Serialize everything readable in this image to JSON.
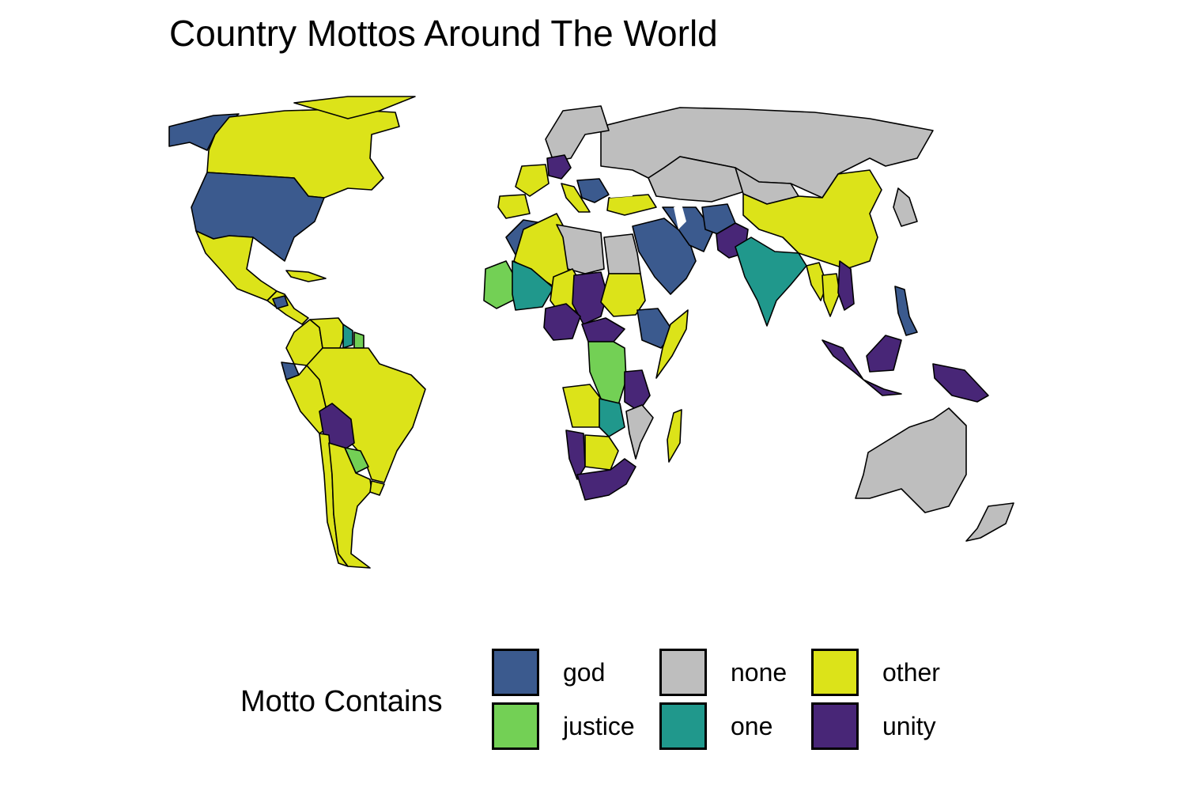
{
  "title": "Country Mottos Around The World",
  "legend": {
    "title": "Motto Contains",
    "items": [
      {
        "key": "god",
        "label": "god",
        "color": "#3B5A8E"
      },
      {
        "key": "justice",
        "label": "justice",
        "color": "#73D055"
      },
      {
        "key": "none",
        "label": "none",
        "color": "#BEBEBE"
      },
      {
        "key": "one",
        "label": "one",
        "color": "#20988C"
      },
      {
        "key": "other",
        "label": "other",
        "color": "#DCE319"
      },
      {
        "key": "unity",
        "label": "unity",
        "color": "#482677"
      }
    ]
  },
  "map_data": {
    "type": "choropleth",
    "regions": [
      {
        "name": "Alaska",
        "category": "god"
      },
      {
        "name": "Canada",
        "category": "other"
      },
      {
        "name": "Greenland",
        "category": "other"
      },
      {
        "name": "United States",
        "category": "god"
      },
      {
        "name": "Mexico",
        "category": "other"
      },
      {
        "name": "Central America",
        "category": "other"
      },
      {
        "name": "Cuba",
        "category": "other"
      },
      {
        "name": "Honduras",
        "category": "god"
      },
      {
        "name": "Colombia",
        "category": "other"
      },
      {
        "name": "Venezuela",
        "category": "other"
      },
      {
        "name": "Guyana",
        "category": "one"
      },
      {
        "name": "Suriname",
        "category": "justice"
      },
      {
        "name": "Ecuador",
        "category": "god"
      },
      {
        "name": "Peru",
        "category": "other"
      },
      {
        "name": "Brazil",
        "category": "other"
      },
      {
        "name": "Bolivia",
        "category": "unity"
      },
      {
        "name": "Paraguay",
        "category": "justice"
      },
      {
        "name": "Argentina",
        "category": "other"
      },
      {
        "name": "Chile",
        "category": "other"
      },
      {
        "name": "Uruguay",
        "category": "other"
      },
      {
        "name": "Russia",
        "category": "none"
      },
      {
        "name": "Scandinavia",
        "category": "none"
      },
      {
        "name": "Germany",
        "category": "unity"
      },
      {
        "name": "France",
        "category": "other"
      },
      {
        "name": "Spain",
        "category": "other"
      },
      {
        "name": "Italy",
        "category": "other"
      },
      {
        "name": "Balkans",
        "category": "god"
      },
      {
        "name": "Turkey",
        "category": "other"
      },
      {
        "name": "Kazakhstan",
        "category": "none"
      },
      {
        "name": "Mongolia",
        "category": "none"
      },
      {
        "name": "China",
        "category": "other"
      },
      {
        "name": "Japan",
        "category": "none"
      },
      {
        "name": "Saudi Arabia",
        "category": "god"
      },
      {
        "name": "Iran",
        "category": "god"
      },
      {
        "name": "Afghanistan",
        "category": "god"
      },
      {
        "name": "Pakistan",
        "category": "unity"
      },
      {
        "name": "India",
        "category": "one"
      },
      {
        "name": "Myanmar",
        "category": "other"
      },
      {
        "name": "Thailand",
        "category": "other"
      },
      {
        "name": "Vietnam",
        "category": "unity"
      },
      {
        "name": "Philippines",
        "category": "god"
      },
      {
        "name": "Indonesia",
        "category": "unity"
      },
      {
        "name": "Papua New Guinea",
        "category": "unity"
      },
      {
        "name": "Australia",
        "category": "none"
      },
      {
        "name": "New Zealand",
        "category": "none"
      },
      {
        "name": "Morocco",
        "category": "god"
      },
      {
        "name": "Algeria",
        "category": "other"
      },
      {
        "name": "Libya",
        "category": "none"
      },
      {
        "name": "Egypt",
        "category": "none"
      },
      {
        "name": "Mauritania",
        "category": "justice"
      },
      {
        "name": "Mali",
        "category": "one"
      },
      {
        "name": "Niger",
        "category": "other"
      },
      {
        "name": "Chad",
        "category": "unity"
      },
      {
        "name": "Sudan",
        "category": "other"
      },
      {
        "name": "Nigeria",
        "category": "unity"
      },
      {
        "name": "Ethiopia",
        "category": "god"
      },
      {
        "name": "Somalia",
        "category": "other"
      },
      {
        "name": "Central African Republic",
        "category": "unity"
      },
      {
        "name": "DR Congo",
        "category": "justice"
      },
      {
        "name": "Tanzania",
        "category": "unity"
      },
      {
        "name": "Angola",
        "category": "other"
      },
      {
        "name": "Zambia",
        "category": "one"
      },
      {
        "name": "Mozambique",
        "category": "none"
      },
      {
        "name": "Namibia",
        "category": "unity"
      },
      {
        "name": "Botswana",
        "category": "other"
      },
      {
        "name": "South Africa",
        "category": "unity"
      },
      {
        "name": "Madagascar",
        "category": "other"
      }
    ]
  }
}
